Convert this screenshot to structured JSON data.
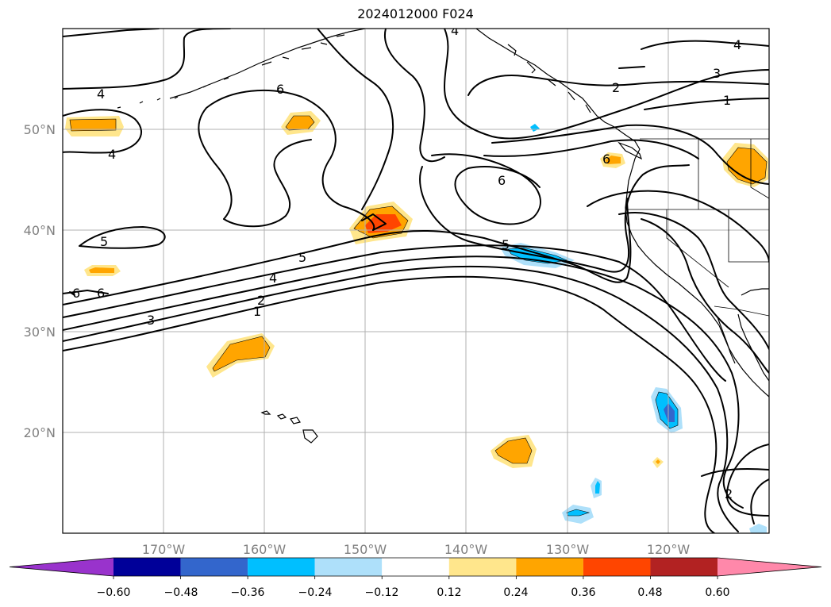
{
  "title": "2024012000 F024",
  "lon_labels": [
    "170°W",
    "160°W",
    "150°W",
    "140°W",
    "130°W",
    "120°W"
  ],
  "lat_labels": [
    "50°N",
    "40°N",
    "30°N",
    "20°N"
  ],
  "colorbar": {
    "tick_labels": [
      "−0.60",
      "−0.48",
      "−0.36",
      "−0.24",
      "−0.12",
      "0.12",
      "0.24",
      "0.36",
      "0.48",
      "0.60"
    ],
    "colors": [
      "#9933cc",
      "#000099",
      "#3366cc",
      "#00bfff",
      "#aee0fa",
      "#ffffff",
      "#ffe68c",
      "#ffa500",
      "#ff4500",
      "#b22222",
      "#ff88aa"
    ]
  },
  "contour_labels": [
    "4",
    "4",
    "6",
    "5",
    "6",
    "6",
    "5",
    "4",
    "3",
    "2",
    "1",
    "6",
    "5",
    "2",
    "3",
    "4",
    "1",
    "6",
    "4",
    "2"
  ],
  "map": {
    "extent": {
      "lon": [
        -180,
        -110
      ],
      "lat": [
        10,
        60
      ]
    },
    "colors": {
      "positive_light": "#ffe68c",
      "positive": "#ffa500",
      "positive_strong": "#ff4500",
      "negative_light": "#aee0fa",
      "negative": "#00bfff",
      "negative_strong": "#3366cc"
    }
  }
}
